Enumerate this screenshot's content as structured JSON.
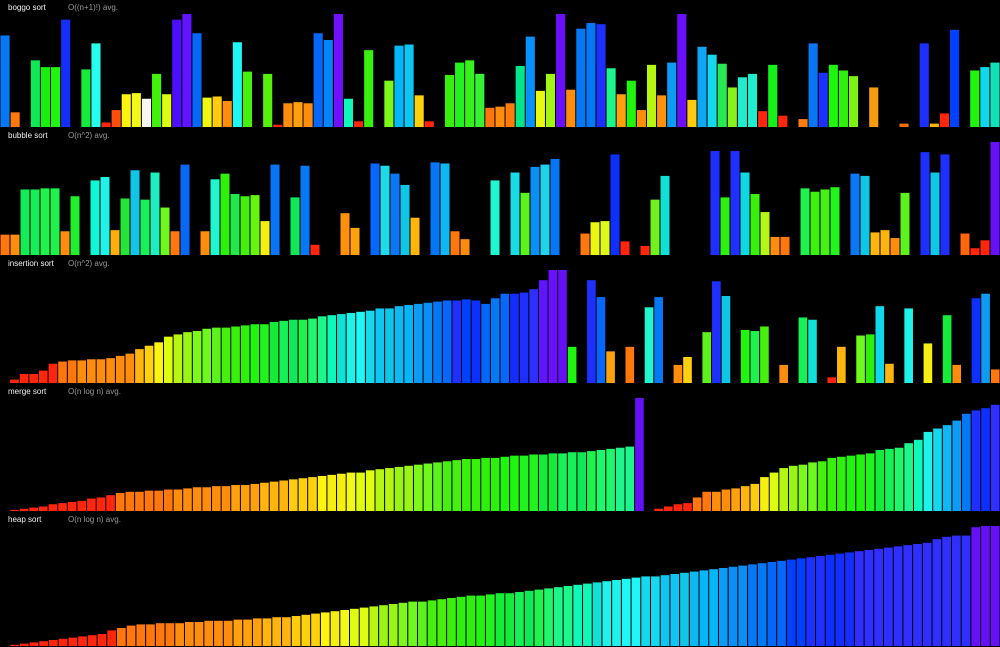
{
  "chart_data": [
    {
      "type": "bar",
      "title": "boggo sort",
      "subtitle": "O((n+1)!) avg.",
      "ylim": [
        0,
        100
      ],
      "grid": false,
      "values": [
        81,
        13,
        0,
        59,
        53,
        53,
        95,
        0,
        51,
        74,
        4,
        15,
        29,
        30,
        25,
        47,
        29,
        95,
        100,
        83,
        26,
        27,
        23,
        75,
        49,
        0,
        47,
        2,
        21,
        22,
        21,
        83,
        77,
        100,
        25,
        5,
        68,
        0,
        41,
        72,
        73,
        28,
        5,
        0,
        46,
        57,
        59,
        47,
        17,
        18,
        21,
        54,
        80,
        32,
        47,
        100,
        33,
        87,
        92,
        91,
        52,
        29,
        41,
        15,
        55,
        28,
        57,
        100,
        24,
        71,
        64,
        56,
        35,
        44,
        47,
        14,
        55,
        10,
        0,
        7,
        74,
        48,
        55,
        50,
        45,
        0,
        35,
        0,
        0,
        3,
        0,
        74,
        3,
        12,
        86,
        0,
        50,
        53,
        57
      ],
      "colors": [
        "#0579f5",
        "#ff770d",
        "#000000",
        "#11e857",
        "#17f00e",
        "#20f60d",
        "#142eff",
        "#000000",
        "#14ec39",
        "#26ffed",
        "#ff260d",
        "#ff4e0d",
        "#fef410",
        "#f2f817",
        "#f6f8f0",
        "#42f20d",
        "#dffd10",
        "#4e0eff",
        "#6014ff",
        "#0568fb",
        "#f1f80f",
        "#ffcc0d",
        "#ff8d0d",
        "#20f6f6",
        "#44f00d",
        "#000000",
        "#55f10d",
        "#ff260d",
        "#ff8d0d",
        "#ffa00d",
        "#ff8d0d",
        "#0568fb",
        "#0583fb",
        "#7110ff",
        "#0ff8b9",
        "#ff260d",
        "#37f00d",
        "#000000",
        "#7ef71d",
        "#04b7fb",
        "#0fc6f3",
        "#ffd10d",
        "#ff260d",
        "#000000",
        "#39f00d",
        "#22f31f",
        "#35f21b",
        "#35f235",
        "#ff750d",
        "#ff8d0d",
        "#ff7c0d",
        "#00e689",
        "#0891fb",
        "#eaf80d",
        "#a2f515",
        "#6a10ff",
        "#ff8d0d",
        "#0579f5",
        "#0579f5",
        "#1d30ff",
        "#1ef68b",
        "#ff9f0d",
        "#20f60d",
        "#ff8d0d",
        "#b7f512",
        "#ff910d",
        "#0d9cf3",
        "#6a10ff",
        "#ffcc0d",
        "#0fa6f3",
        "#15d8ed",
        "#27e951",
        "#89f21d",
        "#1fedcd",
        "#1fedcd",
        "#ff260d",
        "#16f11a",
        "#ff260d",
        "#000000",
        "#ff7d0d",
        "#0777f5",
        "#1d30ff",
        "#20f60d",
        "#2df00d",
        "#7cf215",
        "#000000",
        "#f79c0d",
        "#000000",
        "#000000",
        "#ff6d0d",
        "#000000",
        "#1d30ff",
        "#ffb50d",
        "#ff260d",
        "#0041ff",
        "#000000",
        "#20f60d",
        "#0fd8ed",
        "#10e1b8"
      ]
    },
    {
      "type": "bar",
      "title": "bubble sort",
      "subtitle": "O(n^2) avg.",
      "ylim": [
        0,
        100
      ],
      "grid": false,
      "values": [
        18,
        18,
        58,
        58,
        59,
        59,
        21,
        52,
        0,
        66,
        69,
        22,
        50,
        75,
        49,
        73,
        42,
        21,
        80,
        0,
        21,
        67,
        72,
        54,
        52,
        53,
        30,
        80,
        0,
        51,
        79,
        9,
        0,
        0,
        37,
        24,
        0,
        81,
        79,
        72,
        62,
        33,
        0,
        82,
        81,
        21,
        14,
        0,
        0,
        66,
        0,
        73,
        55,
        78,
        80,
        85,
        0,
        0,
        19,
        29,
        30,
        89,
        12,
        0,
        8,
        49,
        70,
        0,
        0,
        0,
        0,
        92,
        51,
        92,
        73,
        54,
        38,
        16,
        16,
        0,
        59,
        56,
        58,
        60,
        0,
        72,
        70,
        20,
        22,
        15,
        55,
        0,
        91,
        73,
        89,
        0,
        19,
        6,
        13,
        100
      ],
      "colors": [
        "#ff770d",
        "#ff8d0d",
        "#14ec57",
        "#15ee5a",
        "#1ff24d",
        "#1ff24d",
        "#ff8d0d",
        "#21ee2c",
        "#000000",
        "#0ff8d5",
        "#1ff2e8",
        "#ffae0d",
        "#26e539",
        "#0fc6e7",
        "#16f157",
        "#1fedbf",
        "#6ff81e",
        "#ff770d",
        "#0968f6",
        "#000000",
        "#ff8d0d",
        "#20f6cf",
        "#2df00d",
        "#22e94b",
        "#46ef0d",
        "#66f50d",
        "#f6ee10",
        "#0975f6",
        "#000000",
        "#11e857",
        "#0579f5",
        "#ff260d",
        "#000000",
        "#000000",
        "#ff900d",
        "#ffa00d",
        "#000000",
        "#0568fb",
        "#1fdbe8",
        "#0a77f5",
        "#0fc6e7",
        "#ffb50d",
        "#000000",
        "#0577f5",
        "#0fb7f3",
        "#ff770d",
        "#ff8d0d",
        "#000000",
        "#000000",
        "#20f6cf",
        "#000000",
        "#18dbe4",
        "#5cf21d",
        "#0a8ff5",
        "#1fd4ea",
        "#0577f5",
        "#000000",
        "#000000",
        "#ff770d",
        "#ebf80d",
        "#def817",
        "#0d30ff",
        "#ff260d",
        "#000000",
        "#ff260d",
        "#6ff21d",
        "#0fe1d7",
        "#000000",
        "#000000",
        "#000000",
        "#000000",
        "#1d30ff",
        "#2cf00d",
        "#1d30ff",
        "#0fd8e5",
        "#39f00d",
        "#b5f517",
        "#ff8d0d",
        "#ff770d",
        "#000000",
        "#20f24d",
        "#3df00d",
        "#48f015",
        "#23f51c",
        "#000000",
        "#0a77f5",
        "#0fc6e7",
        "#ffb50d",
        "#ffb50d",
        "#ff8d0d",
        "#5cf21d",
        "#000000",
        "#1d30ff",
        "#0fc6e7",
        "#1d30ff",
        "#000000",
        "#ff650d",
        "#ff260d",
        "#ff260d",
        "#6510f5"
      ]
    },
    {
      "type": "bar",
      "title": "insertion sort",
      "subtitle": "O(n^2) avg.",
      "ylim": [
        0,
        100
      ],
      "grid": false,
      "values": [
        0,
        3,
        8,
        8,
        11,
        17,
        19,
        20,
        20,
        21,
        21,
        22,
        24,
        26,
        30,
        33,
        36,
        41,
        43,
        45,
        46,
        48,
        49,
        49,
        50,
        51,
        52,
        52,
        54,
        55,
        56,
        56,
        57,
        59,
        60,
        61,
        62,
        63,
        64,
        66,
        66,
        68,
        69,
        70,
        71,
        72,
        73,
        73,
        74,
        73,
        70,
        75,
        79,
        79,
        80,
        83,
        91,
        100,
        100,
        32,
        0,
        91,
        76,
        28,
        0,
        32,
        0,
        67,
        76,
        0,
        16,
        23,
        0,
        45,
        90,
        77,
        0,
        47,
        46,
        50,
        0,
        16,
        0,
        58,
        56,
        0,
        5,
        32,
        0,
        42,
        43,
        68,
        17,
        0,
        66,
        0,
        35,
        0,
        60,
        16,
        0,
        75,
        79,
        12
      ],
      "colors": [
        "#ff260d",
        "#ff260d",
        "#ff260d",
        "#ff260d",
        "#ff260d",
        "#ff260d",
        "#ff770d",
        "#ff770d",
        "#ff8d0d",
        "#ff8d0d",
        "#ff8d0d",
        "#ff8d0d",
        "#ff8d0d",
        "#ff8d0d",
        "#ffb50d",
        "#fed10d",
        "#fef410",
        "#dffd10",
        "#b7f512",
        "#9af515",
        "#7ef71d",
        "#6ff81e",
        "#5cf21d",
        "#46ef0d",
        "#39f00d",
        "#2df00d",
        "#20f60d",
        "#22f31f",
        "#14ec39",
        "#16f157",
        "#11e857",
        "#1ff24d",
        "#20f66b",
        "#1ef68b",
        "#0ff8b9",
        "#0fe1d7",
        "#1ff2e8",
        "#20f6f6",
        "#15d8ed",
        "#0fc6f3",
        "#0fc6e7",
        "#0fb7f3",
        "#04b7fb",
        "#0d9cf3",
        "#0a8ff5",
        "#0579f5",
        "#0568fb",
        "#1d30ff",
        "#0041ff",
        "#0d30ff",
        "#0568fb",
        "#0579f5",
        "#0568fb",
        "#142eff",
        "#1d30ff",
        "#2f30ff",
        "#6014ff",
        "#6a10ff",
        "#6510f5",
        "#20f60d",
        "#000000",
        "#1d30ff",
        "#0568fb",
        "#ffa00d",
        "#000000",
        "#ff770d",
        "#000000",
        "#20f6cf",
        "#0579f5",
        "#000000",
        "#ff8d0d",
        "#ffd10d",
        "#000000",
        "#5cf21d",
        "#1d30ff",
        "#0fc6e7",
        "#000000",
        "#20f60d",
        "#1ff24d",
        "#46ef0d",
        "#000000",
        "#ff8d0d",
        "#000000",
        "#16f157",
        "#0fe1d7",
        "#000000",
        "#ff260d",
        "#ffb50d",
        "#000000",
        "#6ff81e",
        "#2df00d",
        "#0fd8ed",
        "#ffb50d",
        "#000000",
        "#1ff2e8",
        "#000000",
        "#f6ee10",
        "#000000",
        "#14ec39",
        "#ff8d0d",
        "#000000",
        "#0d30ff",
        "#0d9cf3",
        "#ff770d"
      ]
    },
    {
      "type": "bar",
      "title": "merge sort",
      "subtitle": "O(n log n) avg.",
      "ylim": [
        0,
        100
      ],
      "grid": false,
      "values": [
        0,
        1,
        2,
        3,
        4,
        6,
        7,
        8,
        9,
        11,
        12,
        14,
        16,
        17,
        17,
        18,
        18,
        19,
        19,
        20,
        21,
        21,
        22,
        22,
        23,
        23,
        24,
        25,
        26,
        27,
        28,
        29,
        30,
        31,
        32,
        33,
        34,
        34,
        36,
        37,
        38,
        39,
        40,
        41,
        42,
        43,
        44,
        45,
        46,
        46,
        47,
        47,
        48,
        49,
        49,
        50,
        50,
        51,
        51,
        52,
        52,
        53,
        54,
        55,
        56,
        57,
        100,
        0,
        2,
        4,
        6,
        7,
        12,
        17,
        17,
        19,
        20,
        22,
        24,
        30,
        34,
        38,
        40,
        41,
        43,
        44,
        47,
        48,
        49,
        50,
        51,
        54,
        55,
        56,
        60,
        63,
        70,
        73,
        76,
        80,
        86,
        89,
        91,
        94
      ],
      "colors": [
        "#ff260d",
        "#ff260d",
        "#ff260d",
        "#ff260d",
        "#ff260d",
        "#ff260d",
        "#ff260d",
        "#ff260d",
        "#ff260d",
        "#ff260d",
        "#ff260d",
        "#ff260d",
        "#ff770d",
        "#ff770d",
        "#ff770d",
        "#ff770d",
        "#ff770d",
        "#ff770d",
        "#ff8d0d",
        "#ff8d0d",
        "#ff8d0d",
        "#ff8d0d",
        "#ff8d0d",
        "#ff8d0d",
        "#ffa00d",
        "#ffa00d",
        "#ffa00d",
        "#ffb50d",
        "#ffb50d",
        "#ffb50d",
        "#ffcc0d",
        "#ffd10d",
        "#fed10d",
        "#fef410",
        "#f6ee10",
        "#f6ee10",
        "#f2f817",
        "#dffd10",
        "#dffd10",
        "#b7f512",
        "#b7f512",
        "#9af515",
        "#9af515",
        "#7ef71d",
        "#6ff81e",
        "#5cf21d",
        "#46ef0d",
        "#46ef0d",
        "#39f00d",
        "#39f00d",
        "#2df00d",
        "#2df00d",
        "#20f60d",
        "#20f60d",
        "#22f31f",
        "#22f31f",
        "#14ec39",
        "#14ec39",
        "#16f157",
        "#16f157",
        "#11e857",
        "#1ff24d",
        "#20f66b",
        "#20f66b",
        "#1ef68b",
        "#1ef68b",
        "#6510f5",
        "#000000",
        "#ff260d",
        "#ff260d",
        "#ff260d",
        "#ff260d",
        "#ff770d",
        "#ff770d",
        "#ff8d0d",
        "#ff8d0d",
        "#ffa00d",
        "#ffb50d",
        "#ffcc0d",
        "#f6ee10",
        "#dffd10",
        "#b7f512",
        "#9af515",
        "#7ef71d",
        "#6ff81e",
        "#46ef0d",
        "#39f00d",
        "#2df00d",
        "#20f60d",
        "#20f60d",
        "#22f31f",
        "#14ec39",
        "#16f157",
        "#20f66b",
        "#1ef68b",
        "#0ff8b9",
        "#1ff2e8",
        "#15d8ed",
        "#0fb7f3",
        "#0d9cf3",
        "#0579f5",
        "#1d30ff",
        "#0d30ff",
        "#2f30ff"
      ]
    },
    {
      "type": "bar",
      "title": "heap sort",
      "subtitle": "O(n log n) avg.",
      "ylim": [
        0,
        100
      ],
      "grid": false,
      "values": [
        0,
        1,
        2,
        3,
        4,
        5,
        6,
        7,
        8,
        9,
        10,
        13,
        15,
        17,
        18,
        18,
        19,
        19,
        19,
        20,
        20,
        21,
        21,
        21,
        22,
        22,
        23,
        23,
        24,
        24,
        25,
        26,
        27,
        28,
        29,
        30,
        31,
        32,
        33,
        34,
        35,
        36,
        37,
        37,
        38,
        39,
        40,
        41,
        42,
        42,
        43,
        44,
        44,
        45,
        46,
        47,
        48,
        49,
        50,
        51,
        52,
        53,
        54,
        55,
        56,
        57,
        58,
        58,
        59,
        60,
        61,
        62,
        63,
        64,
        65,
        66,
        67,
        68,
        69,
        70,
        71,
        72,
        73,
        74,
        75,
        76,
        77,
        78,
        79,
        80,
        81,
        82,
        83,
        84,
        85,
        86,
        89,
        91,
        92,
        92,
        99,
        100,
        100
      ],
      "colors": [
        "#ff260d",
        "#ff260d",
        "#ff260d",
        "#ff260d",
        "#ff260d",
        "#ff260d",
        "#ff260d",
        "#ff260d",
        "#ff260d",
        "#ff260d",
        "#ff260d",
        "#ff260d",
        "#ff770d",
        "#ff770d",
        "#ff770d",
        "#ff770d",
        "#ff770d",
        "#ff770d",
        "#ff8d0d",
        "#ff8d0d",
        "#ff8d0d",
        "#ff8d0d",
        "#ff8d0d",
        "#ff8d0d",
        "#ffa00d",
        "#ffa00d",
        "#ffa00d",
        "#ffb50d",
        "#ffb50d",
        "#ffb50d",
        "#ffcc0d",
        "#ffd10d",
        "#fed10d",
        "#fef410",
        "#f6ee10",
        "#f2f817",
        "#dffd10",
        "#dffd10",
        "#b7f512",
        "#9af515",
        "#9af515",
        "#7ef71d",
        "#6ff81e",
        "#5cf21d",
        "#46ef0d",
        "#46ef0d",
        "#39f00d",
        "#2df00d",
        "#2df00d",
        "#20f60d",
        "#22f31f",
        "#14ec39",
        "#14ec39",
        "#16f157",
        "#11e857",
        "#1ff24d",
        "#20f66b",
        "#1ef68b",
        "#1ef68b",
        "#0ff8b9",
        "#0ff8b9",
        "#0fe1d7",
        "#1ff2e8",
        "#1ff2e8",
        "#20f6f6",
        "#20f6f6",
        "#15d8ed",
        "#15d8ed",
        "#0fc6f3",
        "#0fc6f3",
        "#0fc6e7",
        "#0fb7f3",
        "#04b7fb",
        "#04b7fb",
        "#0d9cf3",
        "#0a8ff5",
        "#0a8ff5",
        "#0579f5",
        "#0579f5",
        "#0568fb",
        "#0568fb",
        "#0041ff",
        "#0041ff",
        "#1d30ff",
        "#1d30ff",
        "#0d30ff",
        "#142eff",
        "#142eff",
        "#2f30ff",
        "#2f30ff",
        "#2f30ff",
        "#2f30ff",
        "#2f30ff",
        "#2f30ff",
        "#2f30ff",
        "#2f30ff",
        "#2f30ff",
        "#2f30ff",
        "#2f30ff",
        "#2f30ff",
        "#6510f5",
        "#6510f5",
        "#6510f5"
      ]
    }
  ]
}
